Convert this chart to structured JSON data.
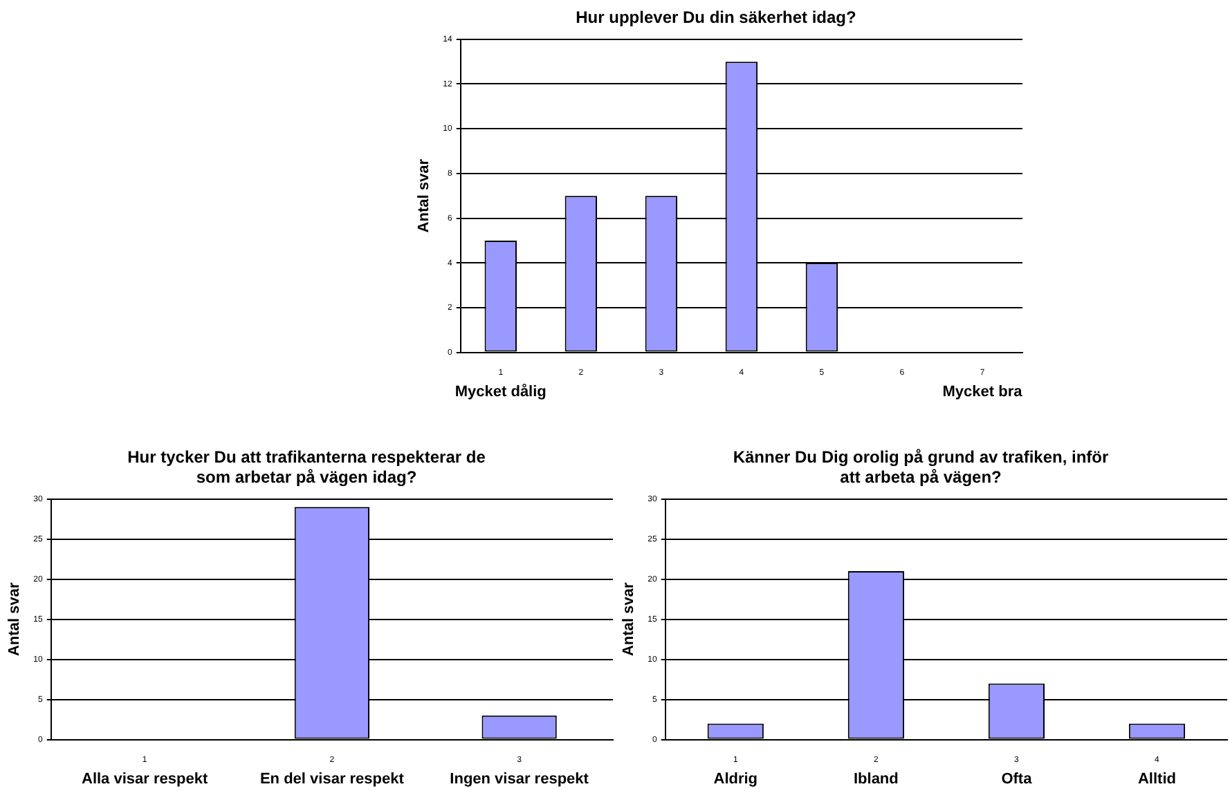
{
  "chart_data": [
    {
      "type": "bar",
      "title": "Hur upplever Du din säkerhet idag?",
      "ylabel": "Antal svar",
      "categories": [
        "1",
        "2",
        "3",
        "4",
        "5",
        "6",
        "7"
      ],
      "values": [
        5,
        7,
        7,
        13,
        4,
        0,
        0
      ],
      "color": "#9999ff",
      "ylim": [
        0,
        14
      ],
      "yticks": [
        0,
        2,
        4,
        6,
        8,
        10,
        12,
        14
      ],
      "grid": "y",
      "annotations": [
        "Mycket dålig",
        "Mycket bra"
      ]
    },
    {
      "type": "bar",
      "title": "Hur tycker Du att trafikanterna respekterar de som arbetar på vägen idag?",
      "ylabel": "Antal svar",
      "categories": [
        "1",
        "2",
        "3"
      ],
      "values": [
        0,
        29,
        3
      ],
      "color": "#9999ff",
      "ylim": [
        0,
        30
      ],
      "yticks": [
        0,
        5,
        10,
        15,
        20,
        25,
        30
      ],
      "grid": "y",
      "annotations": [
        "Alla visar respekt",
        "En del visar respekt",
        "Ingen visar respekt"
      ]
    },
    {
      "type": "bar",
      "title": "Känner Du Dig orolig på grund av trafiken, inför att arbeta på vägen?",
      "ylabel": "Antal svar",
      "categories": [
        "1",
        "2",
        "3",
        "4"
      ],
      "values": [
        2,
        21,
        7,
        2
      ],
      "color": "#9999ff",
      "ylim": [
        0,
        30
      ],
      "yticks": [
        0,
        5,
        10,
        15,
        20,
        25,
        30
      ],
      "grid": "y",
      "annotations": [
        "Aldrig",
        "Ibland",
        "Ofta",
        "Alltid"
      ]
    }
  ]
}
